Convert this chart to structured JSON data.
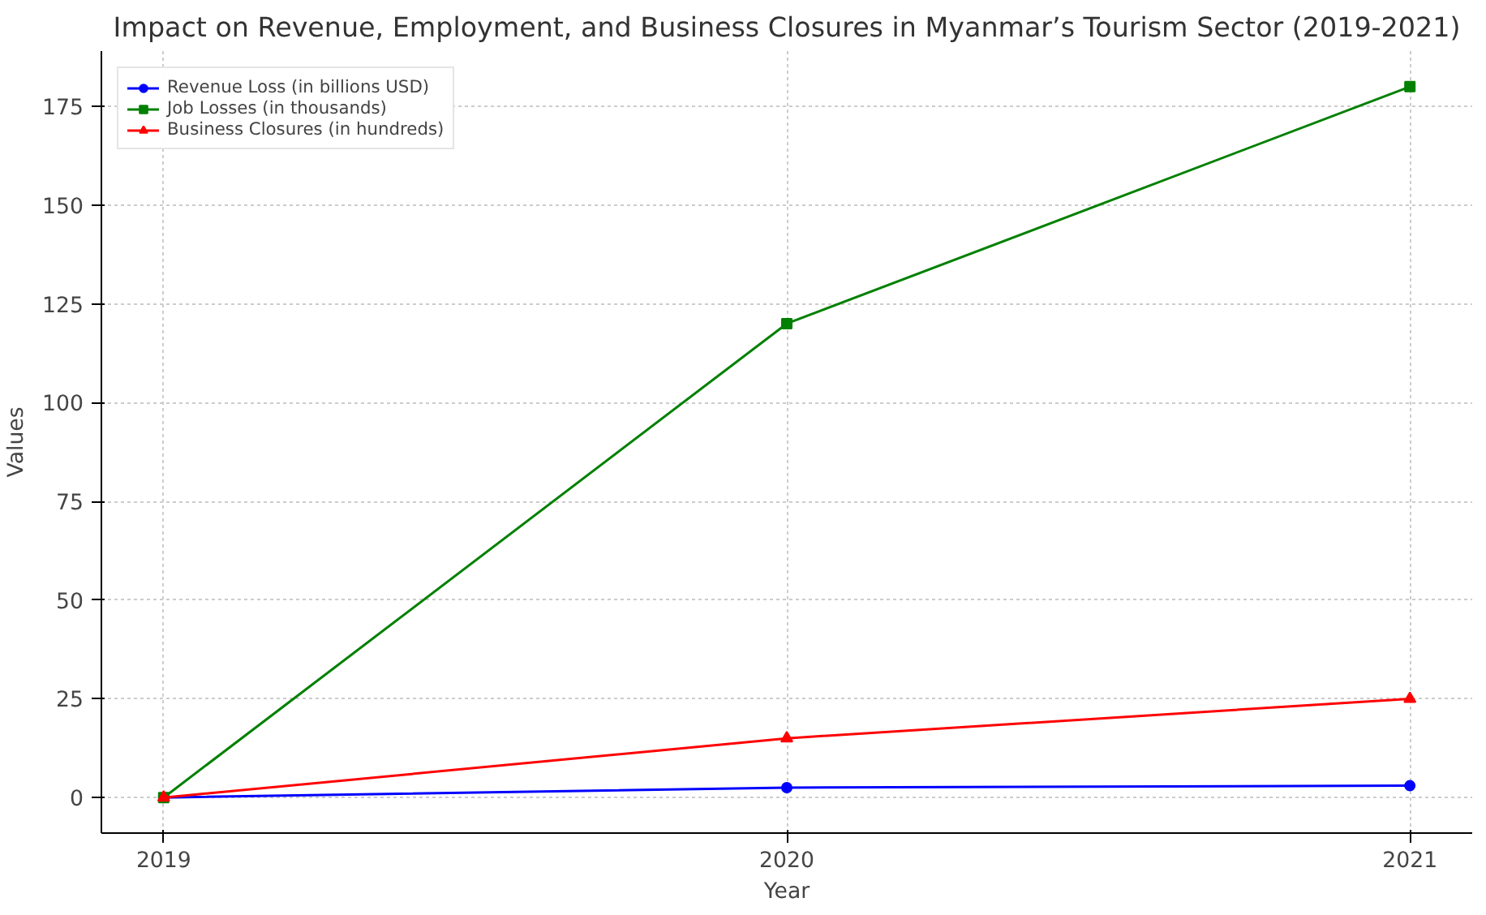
{
  "chart_data": {
    "type": "line",
    "title": "Impact on Revenue, Employment, and Business Closures in Myanmar’s Tourism Sector (2019-2021)",
    "xlabel": "Year",
    "ylabel": "Values",
    "x": [
      2019,
      2020,
      2021
    ],
    "series": [
      {
        "name": "Revenue Loss (in billions USD)",
        "color": "#0000ff",
        "marker": "circle",
        "values": [
          0,
          2.5,
          3
        ]
      },
      {
        "name": "Job Losses (in thousands)",
        "color": "#008000",
        "marker": "square",
        "values": [
          0,
          120,
          180
        ]
      },
      {
        "name": "Business Closures (in hundreds)",
        "color": "#ff0000",
        "marker": "triangle",
        "values": [
          0,
          15,
          25
        ]
      }
    ],
    "xlim": [
      2018.9,
      2021.1
    ],
    "xticks": [
      2019,
      2020,
      2021
    ],
    "ylim": [
      -9,
      189
    ],
    "yticks": [
      0,
      25,
      50,
      75,
      100,
      125,
      150,
      175
    ],
    "grid": true,
    "legend": "top left",
    "line_style": "solid"
  }
}
